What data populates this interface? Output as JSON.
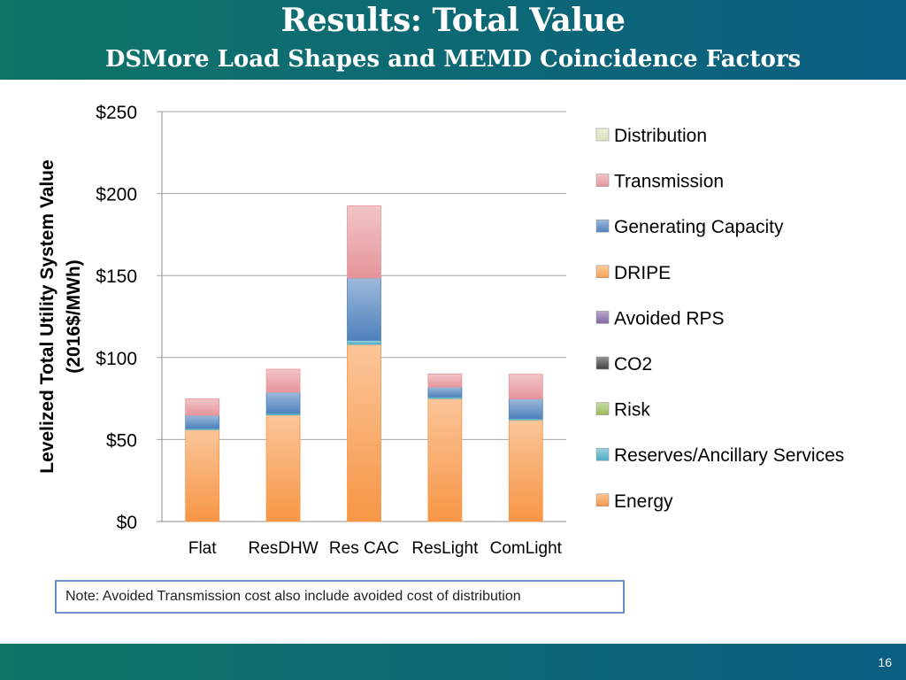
{
  "slide": {
    "title": "Results: Total Value",
    "subtitle": "DSMore Load Shapes and MEMD Coincidence Factors",
    "note": "Note: Avoided Transmission cost also include avoided cost of distribution",
    "page_number": "16"
  },
  "colors": {
    "header_start": "#0f7567",
    "header_end": "#0b5e82"
  },
  "chart_data": {
    "type": "bar",
    "stacked": true,
    "title": "",
    "xlabel": "",
    "ylabel": "Levelized Total Utility System Value (2016$/MWh)",
    "ylabel_lines": [
      "Levelized Total Utility System Value",
      "(2016$/MWh)"
    ],
    "ylim": [
      0,
      250
    ],
    "yticks": [
      0,
      50,
      100,
      150,
      200,
      250
    ],
    "ytick_labels": [
      "$0",
      "$50",
      "$100",
      "$150",
      "$200",
      "$250"
    ],
    "grid": true,
    "legend_position": "right",
    "categories": [
      "Flat",
      "ResDHW",
      "Res CAC",
      "ResLight",
      "ComLight"
    ],
    "series": [
      {
        "name": "Energy",
        "color": "#f79646",
        "values": [
          56,
          65,
          108,
          75,
          62
        ]
      },
      {
        "name": "Reserves/Ancillary Services",
        "color": "#4bacc6",
        "values": [
          0.8,
          0.9,
          2.5,
          1.0,
          0.8
        ]
      },
      {
        "name": "Risk",
        "color": "#9bbb59",
        "values": [
          0,
          0,
          0,
          0,
          0
        ]
      },
      {
        "name": "CO2",
        "color": "#404040",
        "values": [
          0,
          0,
          0,
          0,
          0
        ]
      },
      {
        "name": "Avoided RPS",
        "color": "#8064a2",
        "values": [
          0,
          0,
          0,
          0,
          0
        ]
      },
      {
        "name": "DRIPE",
        "color": "#f5a04f",
        "values": [
          0,
          0,
          0,
          0,
          0
        ]
      },
      {
        "name": "Generating Capacity",
        "color": "#4f81bd",
        "values": [
          8,
          13,
          38,
          6,
          12
        ]
      },
      {
        "name": "Transmission",
        "color": "#e6959a",
        "values": [
          10,
          14,
          44,
          8,
          15
        ]
      },
      {
        "name": "Distribution",
        "color": "#d7e4bd",
        "values": [
          0,
          0,
          0,
          0,
          0
        ]
      }
    ],
    "legend_order": [
      "Distribution",
      "Transmission",
      "Generating Capacity",
      "DRIPE",
      "Avoided RPS",
      "CO2",
      "Risk",
      "Reserves/Ancillary Services",
      "Energy"
    ]
  }
}
